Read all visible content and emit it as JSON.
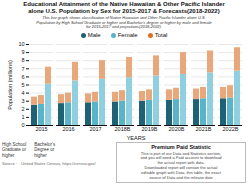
{
  "chart_data": {
    "type": "bar",
    "title": "Educational Attainment of the Native Hawaiian & Other Pacific Islander\nalone U.S. Population by Sex for 2015-2017 & Forecasts(2018-2022)",
    "subtitle": "This bar graph shows classification of Native Hawaiian and Other Pacific Islander alone U.S.\nPopulation by High School Graduate or higher and Bachelor's degree or higher by male and female\nfor 2015-2017 and projections(2018-2022).",
    "x_label": "YEARS",
    "y_label": "Population (millions)",
    "categories": [
      "2015",
      "2016",
      "2017",
      "2018B",
      "2019B",
      "2020B",
      "2021B",
      "2022B"
    ],
    "series": [
      {
        "name": "Male",
        "color": "#1f6175",
        "segments": [
          {
            "color": "#1f6175",
            "values": [
              2.5,
              2.7,
              2.8,
              2.9,
              3.0,
              3.1,
              3.2,
              3.3
            ]
          },
          {
            "color": "#e8a87c",
            "values": [
              1.0,
              1.1,
              1.1,
              1.2,
              1.2,
              1.3,
              1.3,
              1.4
            ]
          }
        ]
      },
      {
        "name": "Female",
        "color": "#5ab4c8",
        "segments": [
          {
            "color": "#5ab4c8",
            "values": [
              2.6,
              2.8,
              2.9,
              3.0,
              3.1,
              3.2,
              3.3,
              3.4
            ]
          },
          {
            "color": "#e8a87c",
            "values": [
              1.1,
              1.2,
              1.2,
              1.3,
              1.3,
              1.4,
              1.4,
              1.5
            ]
          }
        ]
      },
      {
        "name": "Total",
        "color": "#e07020",
        "segments": [
          {
            "color": "#90cfe0",
            "values": [
              5.1,
              5.5,
              5.7,
              5.9,
              6.1,
              6.3,
              6.5,
              6.7
            ]
          },
          {
            "color": "#e8a87c",
            "values": [
              2.1,
              2.3,
              2.3,
              2.5,
              2.5,
              2.7,
              2.7,
              2.9
            ]
          }
        ]
      }
    ],
    "stacked": true,
    "ylim": [
      0,
      10
    ],
    "yticks": [
      0,
      1,
      2,
      3,
      4,
      5,
      6,
      7,
      8,
      9,
      10
    ],
    "grid": true,
    "legend": "top",
    "annotations": [
      "High School\nGraduate or\nhigher",
      "Bachelor's\nDegree or\nhigher"
    ],
    "note_title": "Premium Paid Statistic",
    "note": "This is part of our Data and Statistics section,\nand you will need a Paid account to download\nthe actual report with data.\nDownloaded report will contain the actual\neditable graph with Data, this table, the exact\nsource of Data and the release date",
    "source": "Source :    United States Census, https://census.gov/"
  }
}
